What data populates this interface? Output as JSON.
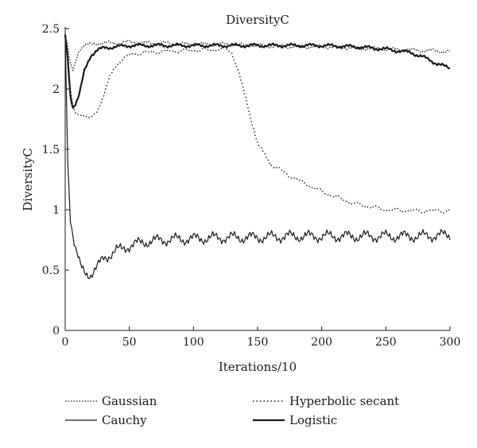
{
  "chart_data": {
    "type": "line",
    "title": "DiversityC",
    "xlabel": "Iterations/10",
    "ylabel": "DiversityC",
    "xlim": [
      0,
      300
    ],
    "ylim": [
      0,
      2.5
    ],
    "xticks": [
      0,
      50,
      100,
      150,
      200,
      250,
      300
    ],
    "yticks": [
      0,
      0.5,
      1,
      1.5,
      2,
      2.5
    ],
    "xtick_labels": [
      "0",
      "50",
      "100",
      "150",
      "200",
      "250",
      "300"
    ],
    "ytick_labels": [
      "0",
      "0.5",
      "1",
      "1.5",
      "2",
      "2.5"
    ],
    "grid": false,
    "legend_position": "bottom",
    "series": [
      {
        "name": "Gaussian",
        "style": "dotted-fine",
        "x": [
          0,
          2,
          4,
          6,
          8,
          10,
          12,
          15,
          20,
          25,
          30,
          40,
          50,
          60,
          75,
          100,
          125,
          150,
          175,
          200,
          225,
          250,
          275,
          300
        ],
        "y": [
          2.45,
          2.35,
          2.2,
          2.15,
          2.22,
          2.3,
          2.34,
          2.36,
          2.37,
          2.38,
          2.38,
          2.38,
          2.39,
          2.38,
          2.38,
          2.37,
          2.37,
          2.36,
          2.35,
          2.35,
          2.34,
          2.33,
          2.32,
          2.31
        ]
      },
      {
        "name": "Cauchy",
        "style": "solid-thin",
        "x": [
          0,
          2,
          4,
          6,
          8,
          10,
          12,
          15,
          18,
          20,
          25,
          30,
          40,
          50,
          60,
          75,
          100,
          125,
          150,
          175,
          200,
          225,
          250,
          275,
          300
        ],
        "y": [
          2.45,
          1.4,
          0.95,
          0.8,
          0.68,
          0.6,
          0.52,
          0.48,
          0.47,
          0.47,
          0.52,
          0.6,
          0.66,
          0.7,
          0.73,
          0.75,
          0.76,
          0.77,
          0.77,
          0.78,
          0.78,
          0.78,
          0.78,
          0.78,
          0.79
        ]
      },
      {
        "name": "Hyperbolic secant",
        "style": "dotted-coarse",
        "x": [
          0,
          2,
          4,
          6,
          8,
          10,
          15,
          20,
          25,
          30,
          35,
          40,
          45,
          50,
          60,
          75,
          100,
          125,
          130,
          135,
          140,
          145,
          150,
          160,
          175,
          200,
          225,
          250,
          275,
          300
        ],
        "y": [
          2.45,
          2.3,
          2.0,
          1.85,
          1.8,
          1.8,
          1.78,
          1.75,
          1.82,
          1.95,
          2.1,
          2.2,
          2.25,
          2.28,
          2.3,
          2.31,
          2.32,
          2.33,
          2.3,
          2.15,
          1.95,
          1.75,
          1.55,
          1.38,
          1.28,
          1.15,
          1.05,
          1.0,
          0.99,
          0.99
        ]
      },
      {
        "name": "Logistic",
        "style": "solid-thick",
        "x": [
          0,
          2,
          4,
          6,
          8,
          10,
          12,
          15,
          20,
          25,
          30,
          40,
          50,
          60,
          75,
          100,
          125,
          150,
          175,
          200,
          225,
          250,
          270,
          280,
          290,
          300
        ],
        "y": [
          2.45,
          2.25,
          1.95,
          1.85,
          1.88,
          1.92,
          2.0,
          2.15,
          2.28,
          2.32,
          2.34,
          2.35,
          2.36,
          2.36,
          2.36,
          2.36,
          2.36,
          2.36,
          2.36,
          2.36,
          2.35,
          2.33,
          2.3,
          2.26,
          2.21,
          2.17
        ]
      }
    ]
  }
}
